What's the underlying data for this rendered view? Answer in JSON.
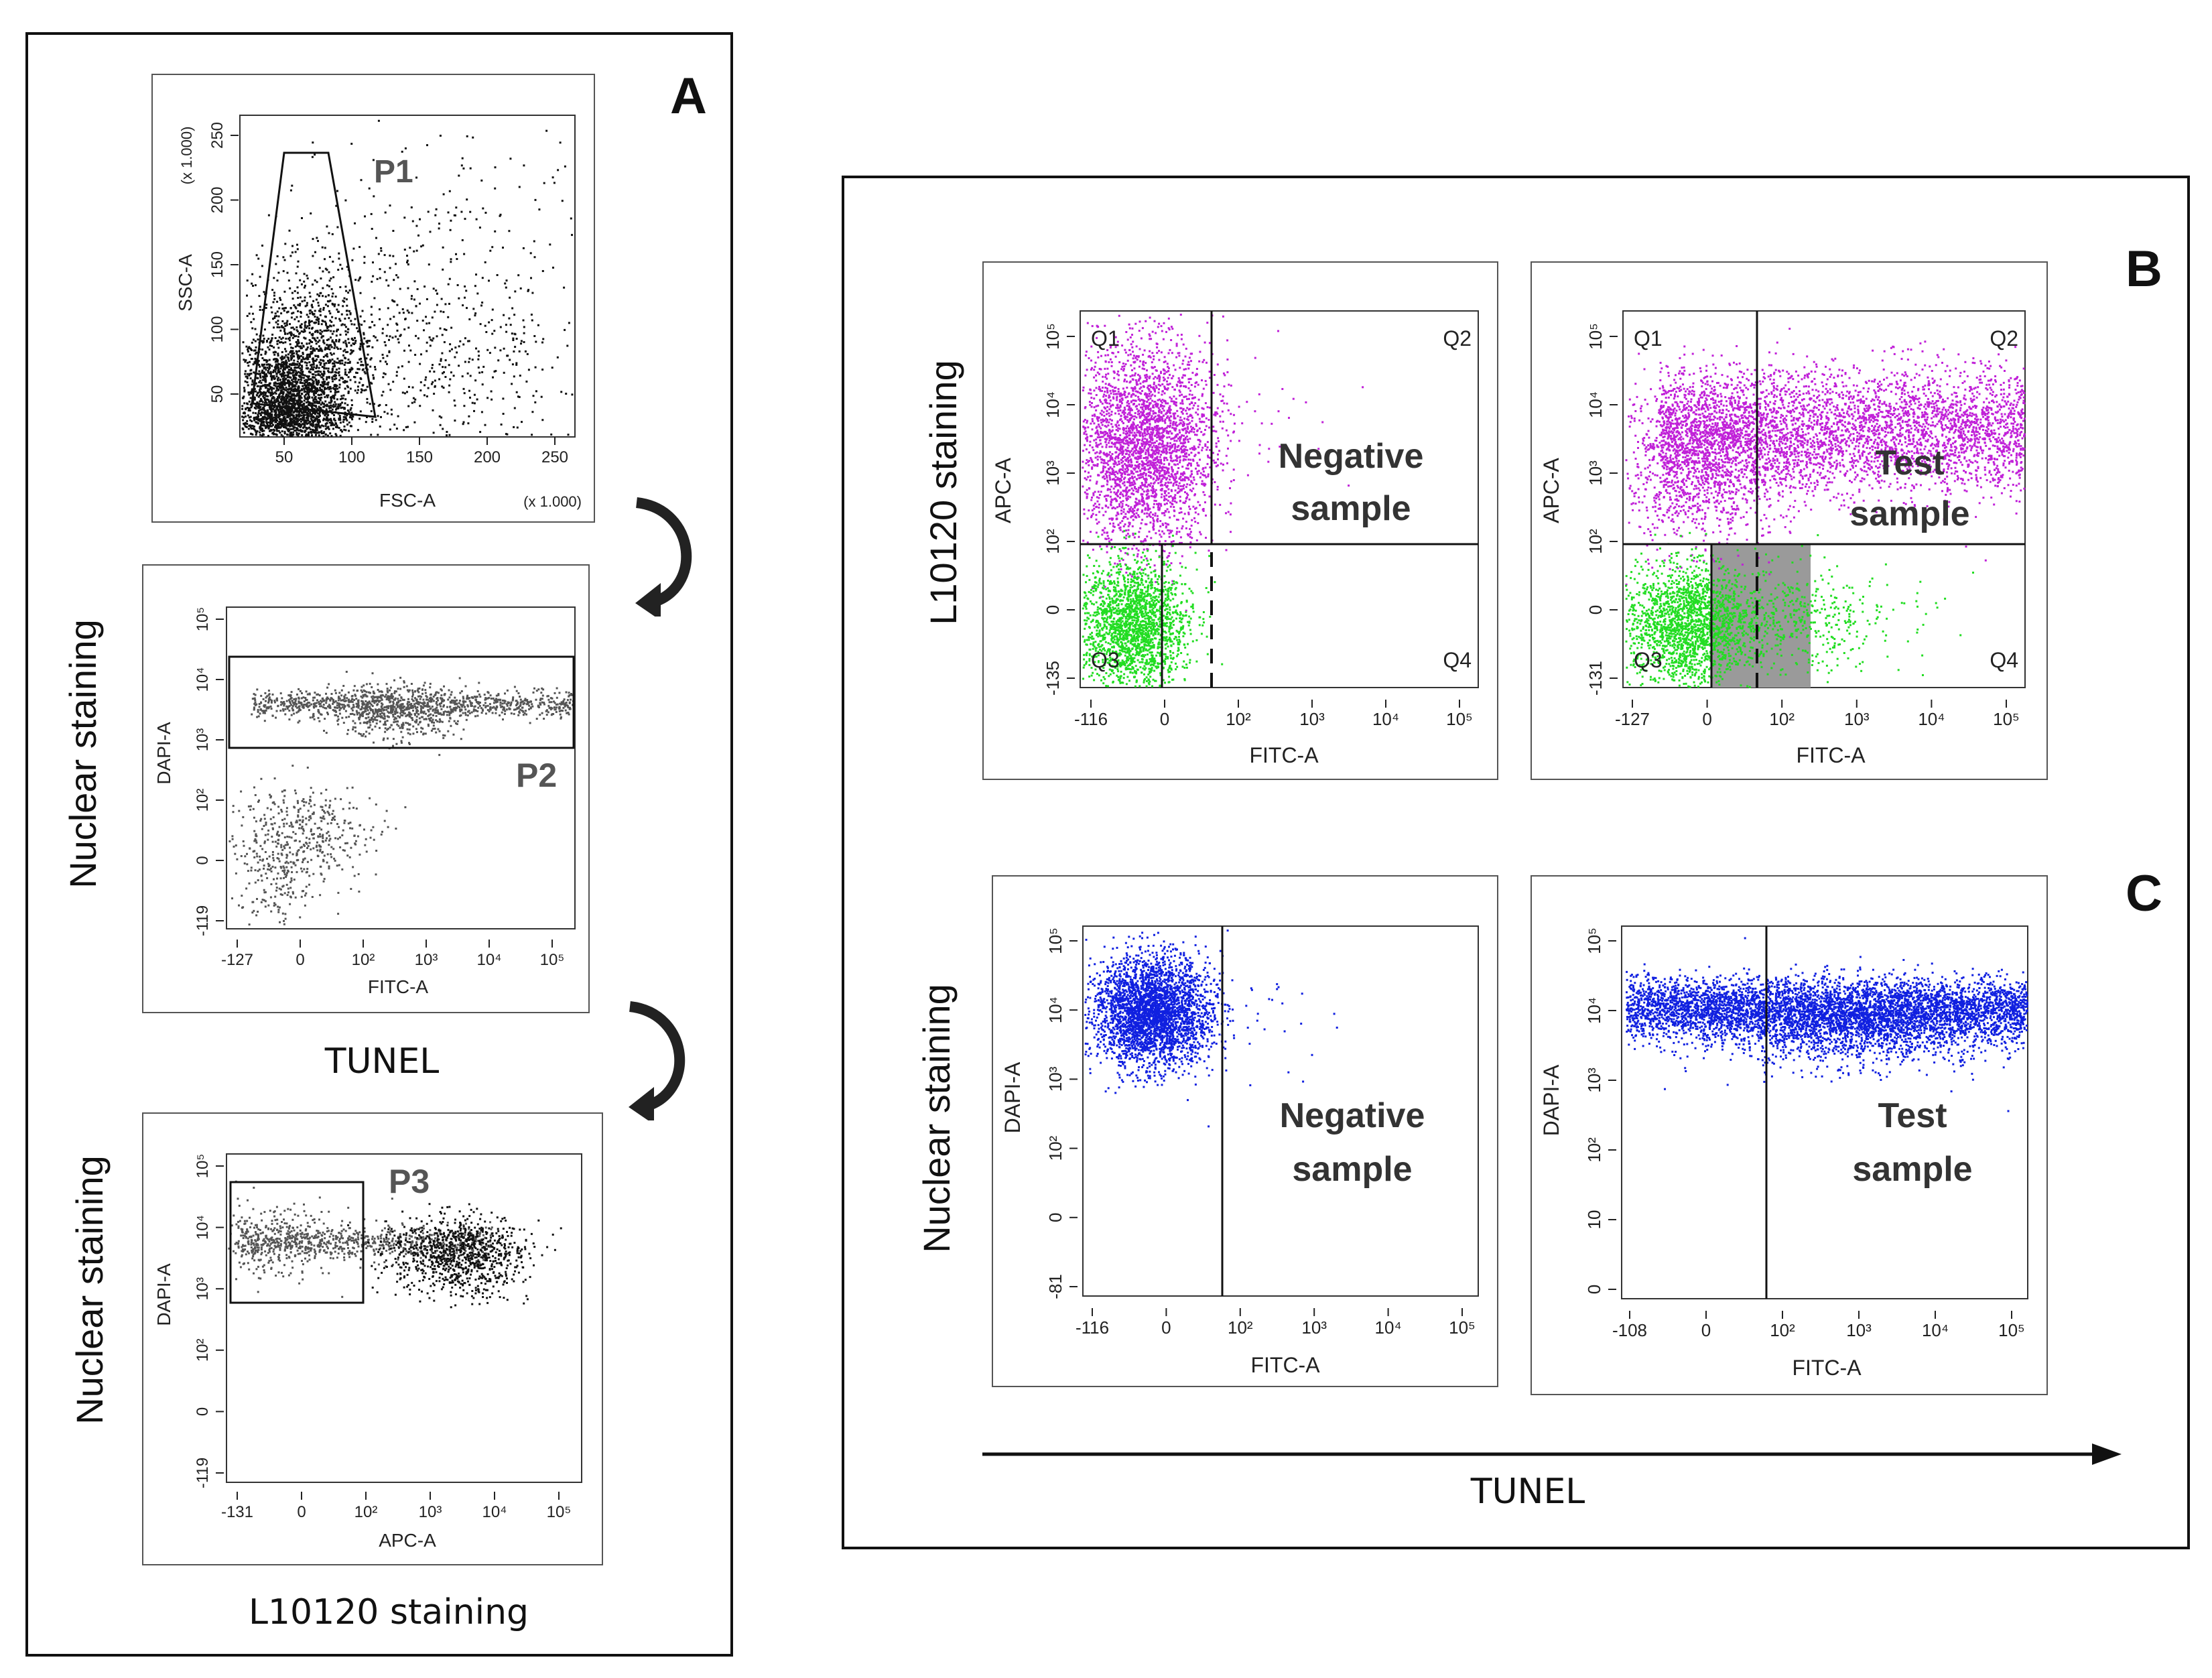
{
  "panels": {
    "A": {
      "letter": "A",
      "plot_p1": {
        "gate_label": "P1",
        "x_axis_label": "FSC-A",
        "y_axis_label": "SSC-A",
        "x_multiplier": "(x 1.000)",
        "y_multiplier": "(x 1.000)",
        "x_ticks": [
          "50",
          "100",
          "150",
          "200",
          "250"
        ],
        "y_ticks": [
          "50",
          "100",
          "150",
          "200",
          "250"
        ]
      },
      "plot_p2": {
        "gate_label": "P2",
        "x_axis_label": "FITC-A",
        "y_axis_label": "DAPI-A",
        "x_ticks": [
          "-127",
          "0",
          "10²",
          "10³",
          "10⁴",
          "10⁵"
        ],
        "y_ticks": [
          "-119",
          "0",
          "10²",
          "10³",
          "10⁴",
          "10⁵"
        ],
        "left_label": "Nuclear staining",
        "bottom_label": "TUNEL"
      },
      "plot_p3": {
        "gate_label": "P3",
        "x_axis_label": "APC-A",
        "y_axis_label": "DAPI-A",
        "x_ticks": [
          "-131",
          "0",
          "10²",
          "10³",
          "10⁴",
          "10⁵"
        ],
        "y_ticks": [
          "-119",
          "0",
          "10²",
          "10³",
          "10⁴",
          "10⁵"
        ],
        "left_label": "Nuclear staining",
        "bottom_label": "L10120 staining"
      }
    },
    "B": {
      "letter": "B",
      "left_label": "L10120 staining",
      "quadrants": [
        "Q1",
        "Q2",
        "Q3",
        "Q4"
      ],
      "negative": {
        "overlay_line1": "Negative",
        "overlay_line2": "sample",
        "x_axis_label": "FITC-A",
        "y_axis_label": "APC-A",
        "x_ticks": [
          "-116",
          "0",
          "10²",
          "10³",
          "10⁴",
          "10⁵"
        ],
        "y_ticks": [
          "-135",
          "0",
          "10²",
          "10³",
          "10⁴",
          "10⁵"
        ]
      },
      "test": {
        "overlay_line1": "Test",
        "overlay_line2": "sample",
        "x_axis_label": "FITC-A",
        "y_axis_label": "APC-A",
        "x_ticks": [
          "-127",
          "0",
          "10²",
          "10³",
          "10⁴",
          "10⁵"
        ],
        "y_ticks": [
          "-131",
          "0",
          "10²",
          "10³",
          "10⁴",
          "10⁵"
        ]
      }
    },
    "C": {
      "letter": "C",
      "left_label": "Nuclear staining",
      "bottom_label": "TUNEL",
      "negative": {
        "overlay_line1": "Negative",
        "overlay_line2": "sample",
        "x_axis_label": "FITC-A",
        "y_axis_label": "DAPI-A",
        "x_ticks": [
          "-116",
          "0",
          "10²",
          "10³",
          "10⁴",
          "10⁵"
        ],
        "y_ticks": [
          "-81",
          "0",
          "10²",
          "10³",
          "10⁴",
          "10⁵"
        ]
      },
      "test": {
        "overlay_line1": "Test",
        "overlay_line2": "sample",
        "x_axis_label": "FITC-A",
        "y_axis_label": "DAPI-A",
        "x_ticks": [
          "-108",
          "0",
          "10²",
          "10³",
          "10⁴",
          "10⁵"
        ],
        "y_ticks": [
          "0",
          "10",
          "10²",
          "10³",
          "10⁴",
          "10⁵"
        ]
      }
    }
  },
  "colors": {
    "frame": "#111111",
    "dots_black": "#111111",
    "dots_gray": "#555555",
    "dots_magenta": "#c020d8",
    "dots_green": "#22dd22",
    "dots_blue": "#1020e0",
    "shade_gray": "#9a9a9a"
  }
}
